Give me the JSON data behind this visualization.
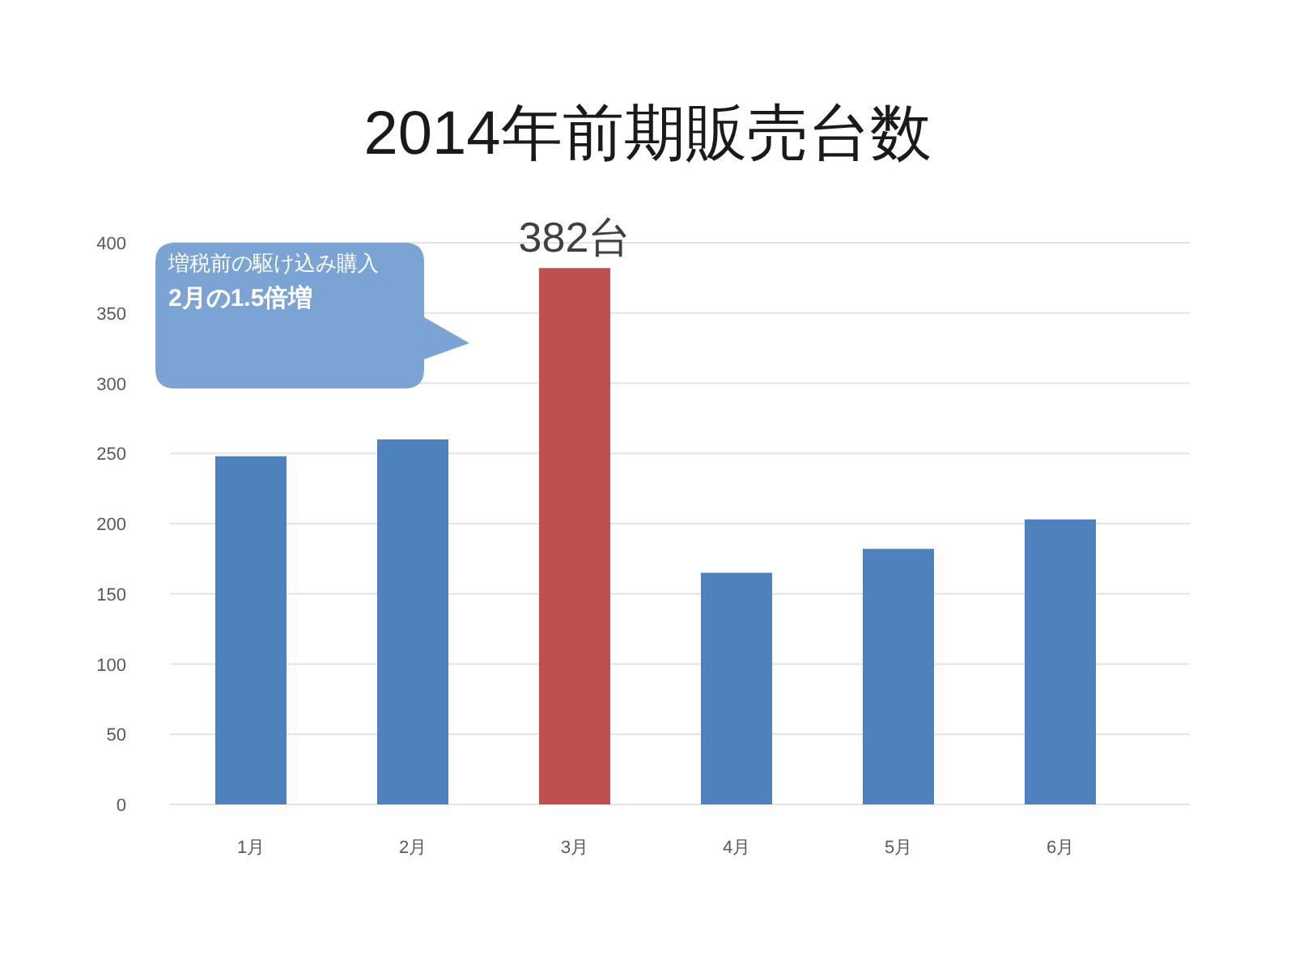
{
  "chart_data": {
    "type": "bar",
    "title": "2014年前期販売台数",
    "categories": [
      "1月",
      "2月",
      "3月",
      "4月",
      "5月",
      "6月"
    ],
    "values": [
      248,
      260,
      382,
      165,
      182,
      203
    ],
    "colors": [
      "#4f81bd",
      "#4f81bd",
      "#c0504d",
      "#4f81bd",
      "#4f81bd",
      "#4f81bd"
    ],
    "value_labels": [
      null,
      null,
      "382台",
      null,
      null,
      null
    ],
    "ylim": [
      0,
      400
    ],
    "yticks": [
      0,
      50,
      100,
      150,
      200,
      250,
      300,
      350,
      400
    ],
    "grid": "y",
    "annotations": [
      "増税前の駆け込み購入",
      "2月の1.5倍増"
    ]
  }
}
